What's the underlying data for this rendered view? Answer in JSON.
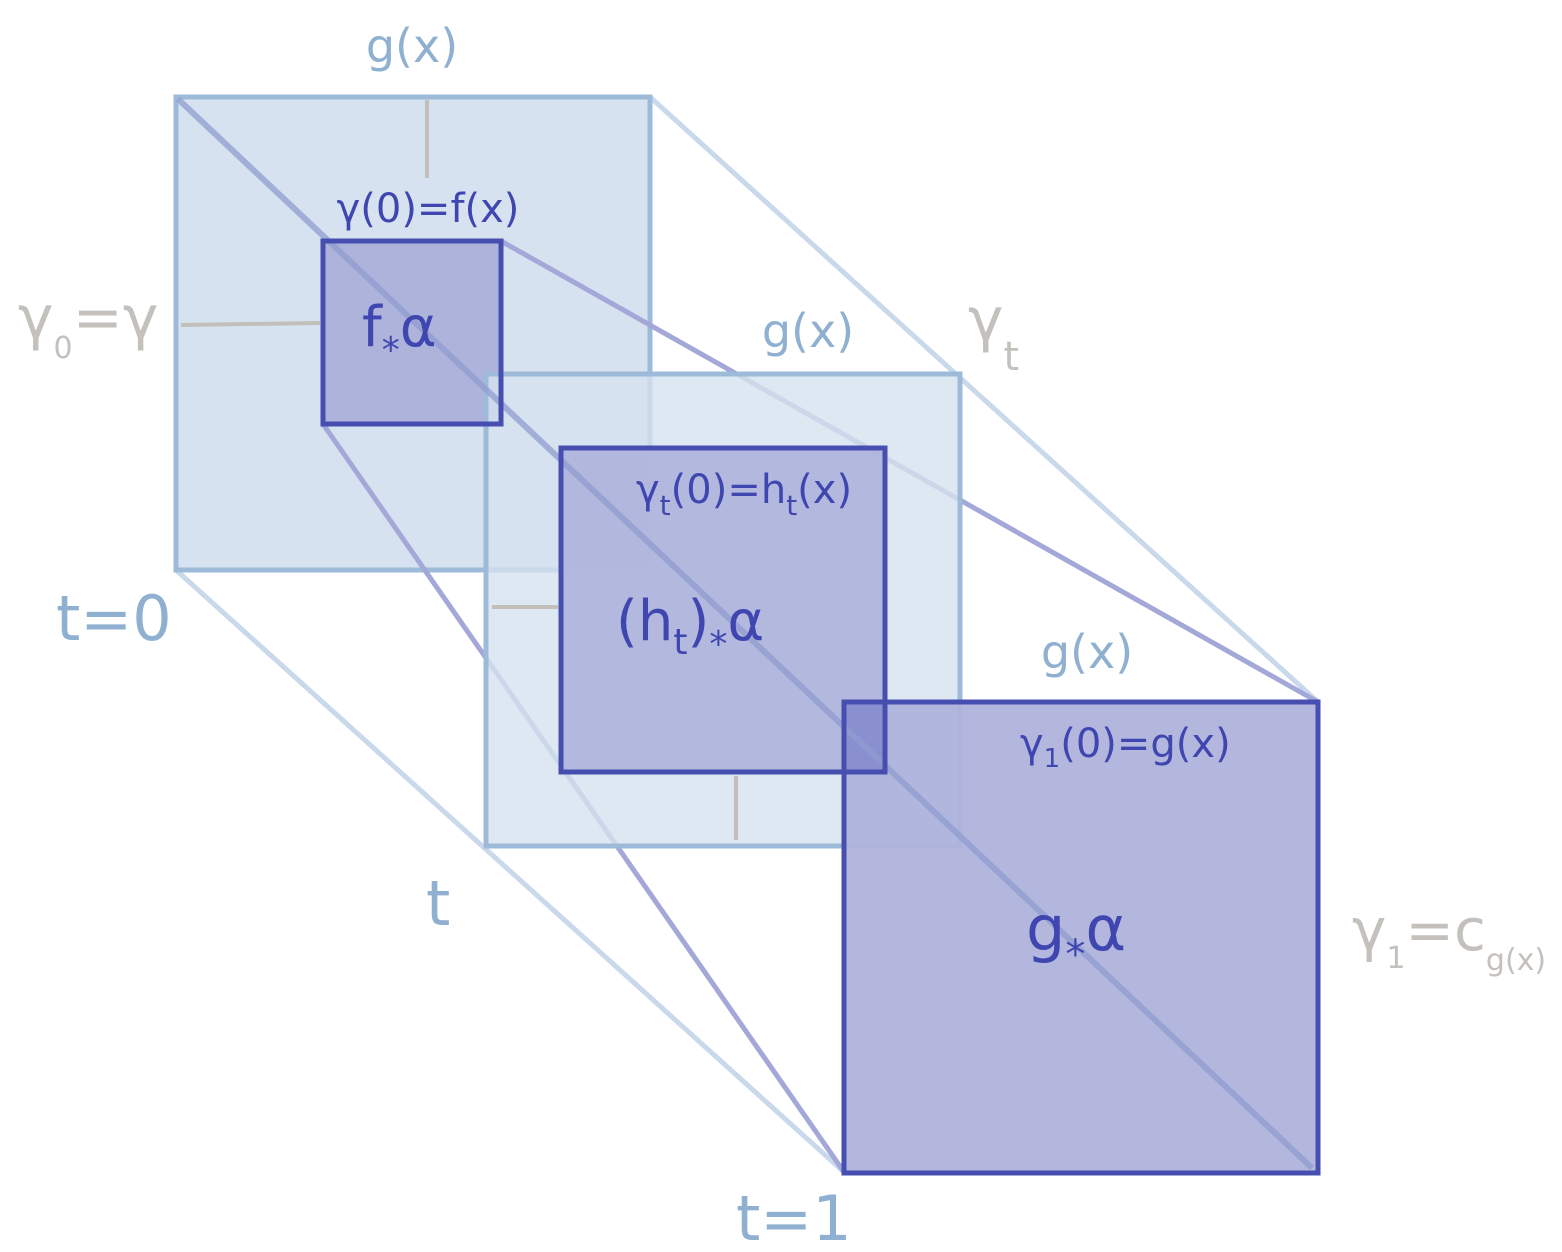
{
  "colors": {
    "light_square_fill": "#d6e2ef",
    "light_square_stroke": "#9dbbd8",
    "dark_square_fill": "#aeb3dc",
    "dark_square_stroke": "#464fb0",
    "connector_light": "#c6d7ea",
    "connector_dark": "#a3a8d8",
    "tick": "#c2bfbb",
    "label_light": "#8fb0d0",
    "label_grey": "#c4c0bc",
    "label_dark": "#3f46b0"
  },
  "labels": {
    "g_top": "g(x)",
    "g_middle": "g(x)",
    "g_bottom": "g(x)",
    "gamma0": "γ",
    "gamma0_sub": "0",
    "gamma0_rhs": "=γ",
    "gammat": "γ",
    "gammat_sub": "t",
    "gamma1": "γ",
    "gamma1_sub": "1",
    "gamma1_rhs": "=c",
    "gamma1_rhs_sub": "g(x)",
    "t0": "t=0",
    "t_mid": "t",
    "t1": "t=1",
    "eq_top": "γ(0)=f(x)",
    "eq_mid_g": "γ",
    "eq_mid_sub": "t",
    "eq_mid_rest": "(0)=h",
    "eq_mid_sub2": "t",
    "eq_mid_end": "(x)",
    "eq_bot_g": "γ",
    "eq_bot_sub": "1",
    "eq_bot_rest": "(0)=g(x)",
    "fa_f": "f",
    "fa_star": "*",
    "fa_alpha": "α",
    "ha_open": "(h",
    "ha_sub": "t",
    "ha_close": ")",
    "ha_star": "*",
    "ha_alpha": "α",
    "ga_g": "g",
    "ga_star": "*",
    "ga_alpha": "α"
  }
}
